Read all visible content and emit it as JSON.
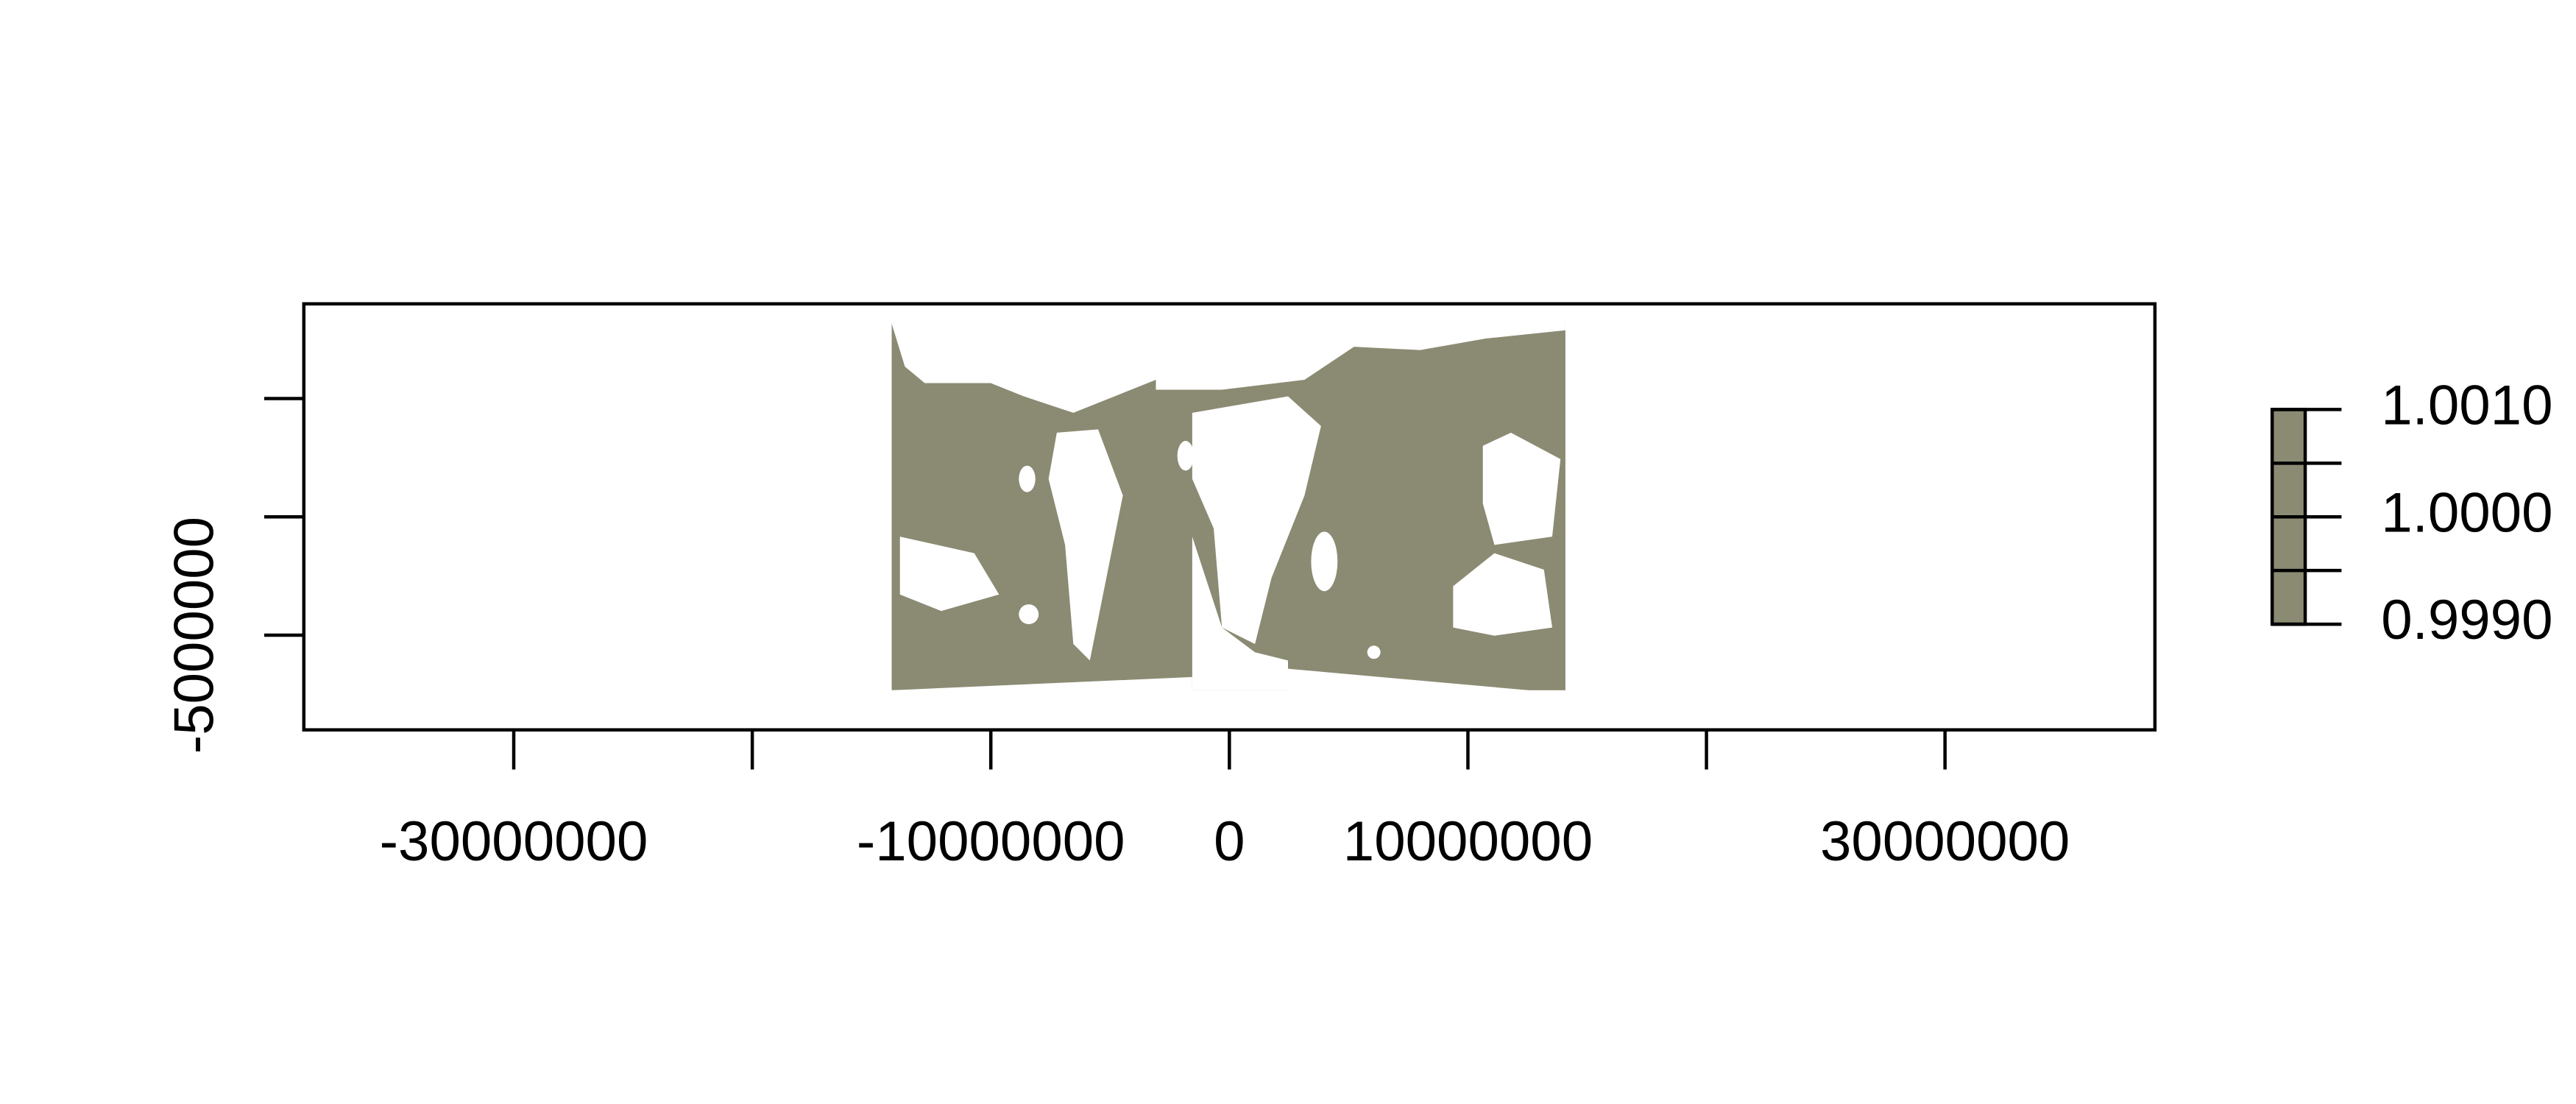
{
  "map": {
    "color": "#8b8b74",
    "xlim": [
      -38800000,
      38800000
    ],
    "ylim": [
      -9000000,
      9000000
    ],
    "xticks": [
      -30000000,
      {
        "value": -20000000,
        "label": null
      },
      -10000000,
      0,
      10000000,
      {
        "value": 20000000,
        "label": null
      },
      30000000
    ],
    "yticks": [
      {
        "value": 5000000,
        "label": null
      },
      {
        "value": 0,
        "label": null
      },
      -5000000
    ],
    "legend": {
      "lim": [
        0.999,
        1.001
      ],
      "ticks": [
        {
          "value": 0.999,
          "label": "0.9990"
        },
        {
          "value": 0.9995,
          "label": null
        },
        {
          "value": 1,
          "label": "1.0000"
        },
        {
          "value": 1.0005,
          "label": null
        },
        {
          "value": 1.001,
          "label": "1.0010"
        }
      ]
    }
  }
}
